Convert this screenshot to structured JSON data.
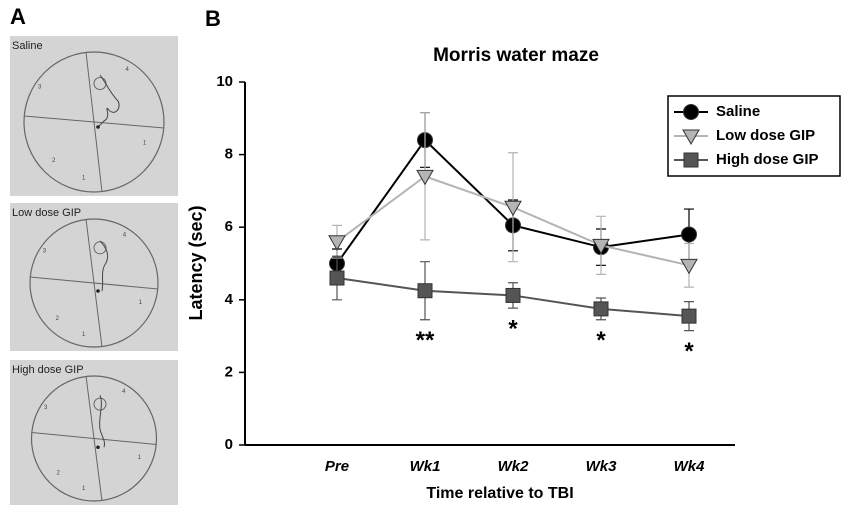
{
  "panel_a": {
    "label": "A",
    "images": [
      {
        "label": "Saline",
        "quadrants": [
          "1",
          "2",
          "3",
          "4"
        ]
      },
      {
        "label": "Low dose GIP",
        "quadrants": [
          "1",
          "2",
          "3",
          "4"
        ]
      },
      {
        "label": "High dose GIP",
        "quadrants": [
          "1",
          "2",
          "3",
          "4"
        ]
      }
    ]
  },
  "chart_data": {
    "type": "line",
    "panel_label": "B",
    "title": "Morris water maze",
    "x_label": "Time relative to TBI",
    "y_label": "Latency (sec)",
    "categories": [
      "Pre",
      "Wk1",
      "Wk2",
      "Wk3",
      "Wk4"
    ],
    "ylim": [
      0,
      10
    ],
    "yticks": [
      0,
      2,
      4,
      6,
      8,
      10
    ],
    "grid": false,
    "legend": "upper right",
    "series": [
      {
        "name": "Saline",
        "color": "#000000",
        "marker": "circle",
        "values": [
          5.0,
          8.4,
          6.05,
          5.45,
          5.8
        ],
        "errors": [
          0.4,
          0.75,
          0.7,
          0.5,
          0.7
        ]
      },
      {
        "name": "Low dose GIP",
        "color": "#b4b4b4",
        "marker": "triangle",
        "values": [
          5.6,
          7.4,
          6.55,
          5.5,
          4.95
        ],
        "errors": [
          0.45,
          1.75,
          1.5,
          0.8,
          0.6
        ]
      },
      {
        "name": "High dose GIP",
        "color": "#555555",
        "marker": "square",
        "values": [
          4.6,
          4.25,
          4.12,
          3.75,
          3.55
        ],
        "errors": [
          0.6,
          0.8,
          0.35,
          0.3,
          0.4
        ]
      }
    ],
    "annotations": [
      {
        "text": "**",
        "category": "Wk1"
      },
      {
        "text": "*",
        "category": "Wk2"
      },
      {
        "text": "*",
        "category": "Wk3"
      },
      {
        "text": "*",
        "category": "Wk4"
      }
    ]
  }
}
